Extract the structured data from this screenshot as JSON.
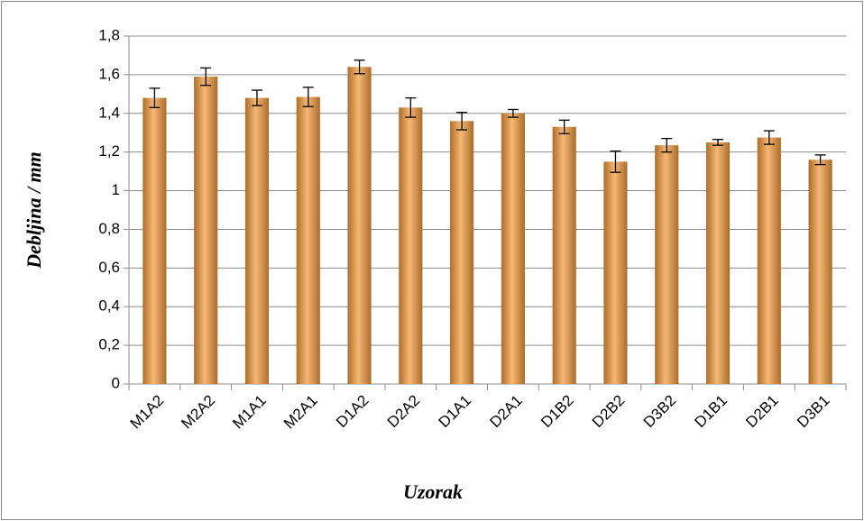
{
  "chart_data": {
    "type": "bar",
    "xlabel": "Uzorak",
    "ylabel": "Debljina / mm",
    "categories": [
      "M1A2",
      "M2A2",
      "M1A1",
      "M2A1",
      "D1A2",
      "D2A2",
      "D1A1",
      "D2A1",
      "D1B2",
      "D2B2",
      "D3B2",
      "D1B1",
      "D2B1",
      "D3B1"
    ],
    "values": [
      1.48,
      1.59,
      1.48,
      1.485,
      1.64,
      1.43,
      1.36,
      1.4,
      1.33,
      1.15,
      1.235,
      1.25,
      1.275,
      1.16
    ],
    "errors": [
      0.05,
      0.045,
      0.04,
      0.05,
      0.035,
      0.05,
      0.045,
      0.02,
      0.035,
      0.055,
      0.035,
      0.015,
      0.035,
      0.025
    ],
    "color": "#f39a3a",
    "ylim": [
      0,
      1.8
    ],
    "yticks": [
      0,
      {
        "value": 0.2,
        "label": "0,2"
      },
      {
        "value": 0.4,
        "label": "0,4"
      },
      {
        "value": 0.6,
        "label": "0,6"
      },
      {
        "value": 0.8,
        "label": "0,8"
      },
      1,
      {
        "value": 1.2,
        "label": "1,2"
      },
      {
        "value": 1.4,
        "label": "1,4"
      },
      {
        "value": 1.6,
        "label": "1,6"
      },
      {
        "value": 1.8,
        "label": "1,8"
      }
    ],
    "grid": true
  }
}
